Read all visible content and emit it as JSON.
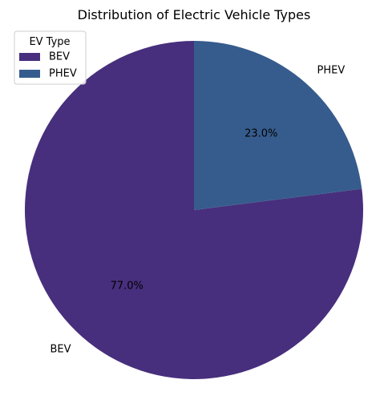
{
  "chart_data": {
    "type": "pie",
    "title": "Distribution of Electric Vehicle Types",
    "categories": [
      "BEV",
      "PHEV"
    ],
    "values": [
      77.0,
      23.0
    ],
    "value_labels": [
      "77.0%",
      "23.0%"
    ],
    "colors": [
      "#472f7d",
      "#365c8d"
    ],
    "start_angle_deg": 90,
    "direction": "counterclockwise",
    "legend": {
      "title": "EV Type",
      "placement": "top-left",
      "entries": [
        "BEV",
        "PHEV"
      ]
    }
  }
}
